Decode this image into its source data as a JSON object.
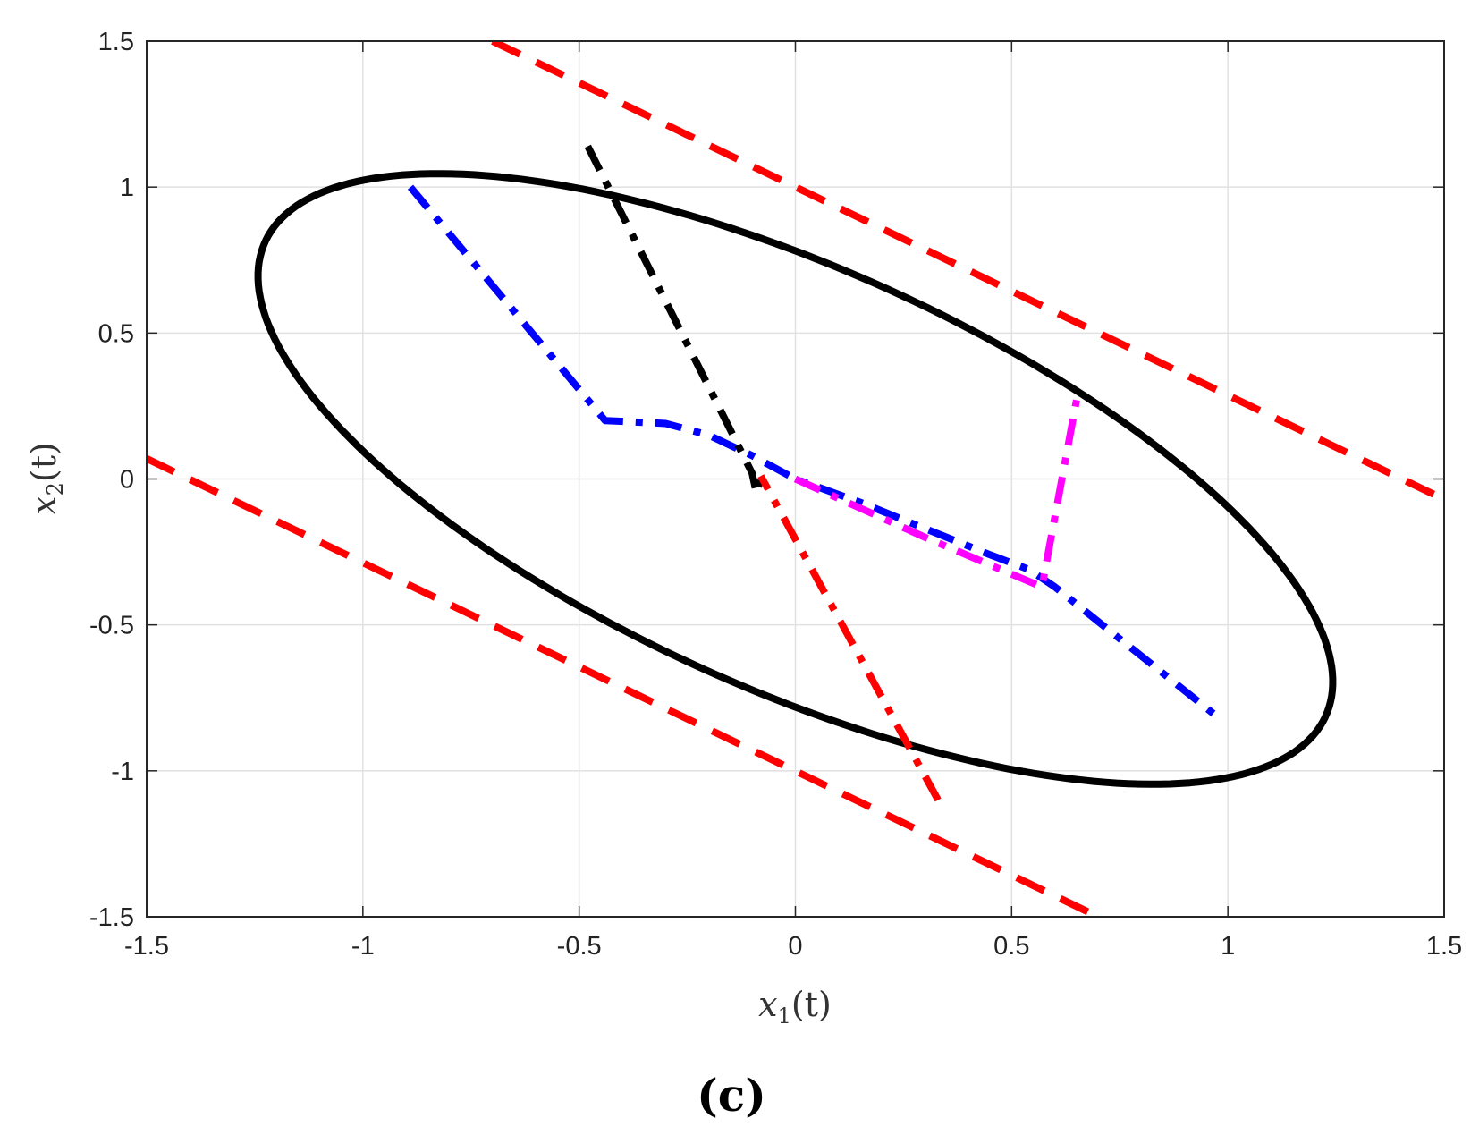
{
  "chart_data": {
    "type": "line",
    "xlabel": {
      "base": "x",
      "sub": "1",
      "arg": "(t)"
    },
    "ylabel": {
      "base": "x",
      "sub": "2",
      "arg": "(t)"
    },
    "xlim": [
      -1.5,
      1.5
    ],
    "ylim": [
      -1.5,
      1.5
    ],
    "xticks": [
      -1.5,
      -1,
      -0.5,
      0,
      0.5,
      1,
      1.5
    ],
    "yticks": [
      -1.5,
      -1,
      -0.5,
      0,
      0.5,
      1,
      1.5
    ],
    "xtick_labels": [
      "-1.5",
      "-1",
      "-0.5",
      "0",
      "0.5",
      "1",
      "1.5"
    ],
    "ytick_labels": [
      "-1.5",
      "-1",
      "-0.5",
      "0",
      "0.5",
      "1",
      "1.5"
    ],
    "grid": true,
    "panel_label": "(c)",
    "series": [
      {
        "color": "#ff0000",
        "style": "dashed",
        "width": 8,
        "x": [
          -0.7,
          1.5
        ],
        "y": [
          1.5,
          -0.07
        ]
      },
      {
        "color": "#ff0000",
        "style": "dashed",
        "width": 8,
        "x": [
          -1.5,
          0.7
        ],
        "y": [
          0.07,
          -1.5
        ]
      },
      {
        "color": "#000000",
        "style": "solid",
        "width": 8,
        "ellipse": {
          "cx": 0,
          "cy": 0,
          "a": 1.487,
          "b": 0.653,
          "angle_deg": -37.7
        }
      },
      {
        "color": "#0000ff",
        "style": "dashdot",
        "width": 8,
        "x": [
          -0.89,
          -0.44,
          -0.3,
          -0.2,
          -0.1,
          0.0,
          0.15,
          0.3,
          0.45,
          0.54,
          0.6,
          0.98
        ],
        "y": [
          1.0,
          0.2,
          0.19,
          0.15,
          0.08,
          0.0,
          -0.08,
          -0.17,
          -0.26,
          -0.31,
          -0.37,
          -0.82
        ]
      },
      {
        "color": "#000000",
        "style": "dashdot",
        "width": 8,
        "x": [
          -0.48,
          -0.1,
          -0.09,
          -0.08
        ],
        "y": [
          1.14,
          0.02,
          -0.05,
          0.01
        ]
      },
      {
        "color": "#ff0000",
        "style": "dashdot",
        "width": 8,
        "x": [
          0.33,
          -0.08
        ],
        "y": [
          -1.1,
          0.01
        ]
      },
      {
        "color": "#ff00ff",
        "style": "dashdot",
        "width": 8,
        "x": [
          0.0,
          0.3,
          0.57,
          0.65
        ],
        "y": [
          0.0,
          -0.2,
          -0.37,
          0.27
        ]
      }
    ]
  }
}
